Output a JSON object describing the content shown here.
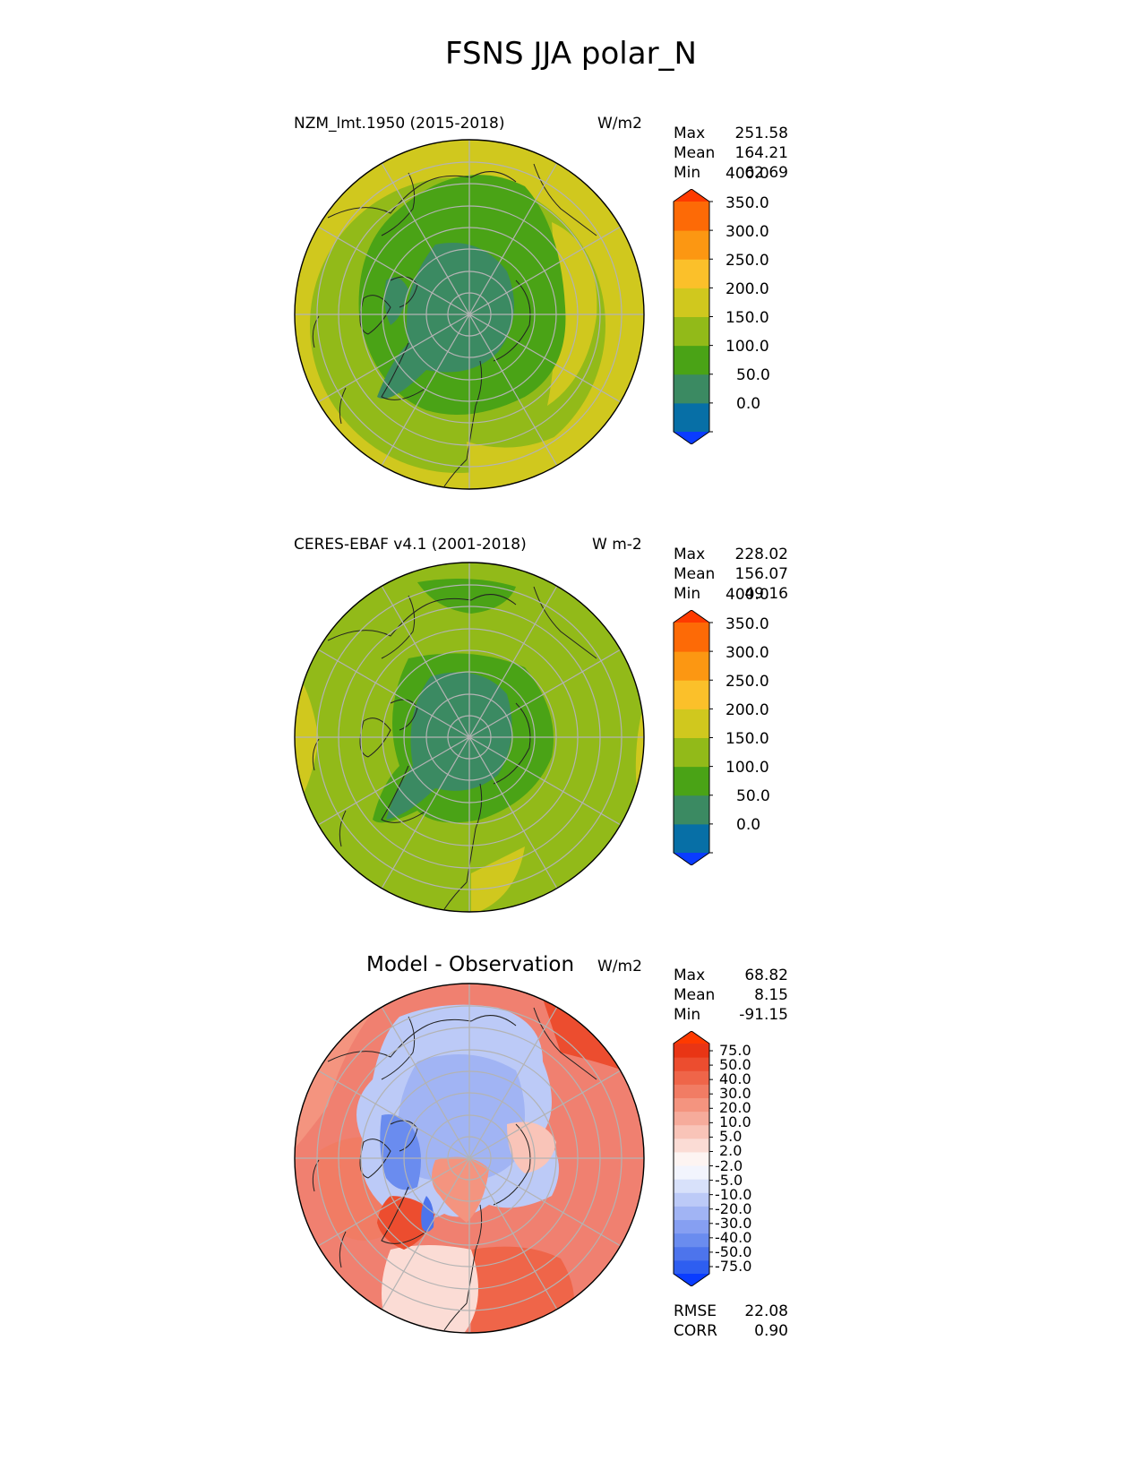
{
  "figure": {
    "title": "FSNS JJA polar_N"
  },
  "panels": [
    {
      "title": "NZM_lmt.1950 (2015-2018)",
      "units": "W/m2",
      "stats": [
        {
          "label": "Max",
          "value": "251.58"
        },
        {
          "label": "Mean",
          "value": "164.21"
        },
        {
          "label": "Min",
          "value": "62.69"
        }
      ]
    },
    {
      "title": "CERES-EBAF v4.1 (2001-2018)",
      "units": "W m-2",
      "stats": [
        {
          "label": "Max",
          "value": "228.02"
        },
        {
          "label": "Mean",
          "value": "156.07"
        },
        {
          "label": "Min",
          "value": "49.16"
        }
      ]
    },
    {
      "title": "Model - Observation",
      "units": "W/m2",
      "stats": [
        {
          "label": "Max",
          "value": "68.82"
        },
        {
          "label": "Mean",
          "value": "8.15"
        },
        {
          "label": "Min",
          "value": "-91.15"
        }
      ],
      "metrics": [
        {
          "label": "RMSE",
          "value": "22.08"
        },
        {
          "label": "CORR",
          "value": "0.90"
        }
      ]
    }
  ],
  "colorbars": {
    "field": {
      "colors": [
        "#0a3cff",
        "#076fa6",
        "#3b8a62",
        "#4aa316",
        "#92ba19",
        "#d0c81e",
        "#fbc02a",
        "#fc9712",
        "#fd6a06",
        "#fe3a00"
      ],
      "ticks": [
        "0.0",
        "50.0",
        "100.0",
        "150.0",
        "200.0",
        "250.0",
        "300.0",
        "350.0",
        "400.0"
      ]
    },
    "diff": {
      "colors": [
        "#0a3cff",
        "#2e5ef0",
        "#4d74ec",
        "#6a8cef",
        "#869ff2",
        "#a1b4f4",
        "#bccaf7",
        "#d8e1fa",
        "#f2f4fd",
        "#fdf4f2",
        "#fbdcd5",
        "#f9c4b8",
        "#f6ab9b",
        "#f4947f",
        "#f17c64",
        "#ef6549",
        "#ec4d2f",
        "#e93515",
        "#fe3a00"
      ],
      "ticks": [
        "-75.0",
        "-50.0",
        "-40.0",
        "-30.0",
        "-20.0",
        "-10.0",
        "-5.0",
        "-2.0",
        "2.0",
        "5.0",
        "10.0",
        "20.0",
        "30.0",
        "40.0",
        "50.0",
        "75.0"
      ]
    }
  }
}
